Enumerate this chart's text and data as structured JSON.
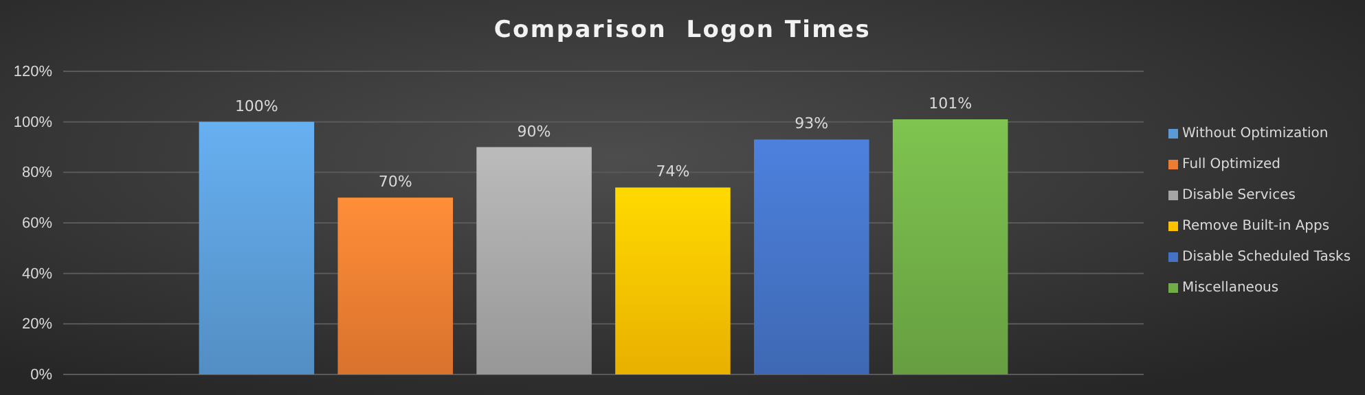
{
  "chart_data": {
    "type": "bar",
    "title": "Comparison  Logon Times",
    "categories": [
      null
    ],
    "series": [
      {
        "name": "Without Optimization",
        "color": "#5b9bd5",
        "values": [
          100
        ],
        "value_labels": [
          "100%"
        ]
      },
      {
        "name": "Full Optimized",
        "color": "#ed7d31",
        "values": [
          70
        ],
        "value_labels": [
          "70%"
        ]
      },
      {
        "name": "Disable Services",
        "color": "#a5a5a5",
        "values": [
          90
        ],
        "value_labels": [
          "90%"
        ]
      },
      {
        "name": "Remove Built-in Apps",
        "color": "#ffc000",
        "values": [
          74
        ],
        "value_labels": [
          "74%"
        ]
      },
      {
        "name": "Disable Scheduled Tasks",
        "color": "#4472c4",
        "values": [
          93
        ],
        "value_labels": [
          "93%"
        ]
      },
      {
        "name": "Miscellaneous",
        "color": "#70ad47",
        "values": [
          101
        ],
        "value_labels": [
          "101%"
        ]
      }
    ],
    "ylim": [
      0,
      120
    ],
    "yticks": [
      {
        "value": 0,
        "label": "0%"
      },
      {
        "value": 20,
        "label": "20%"
      },
      {
        "value": 40,
        "label": "40%"
      },
      {
        "value": 60,
        "label": "60%"
      },
      {
        "value": 80,
        "label": "80%"
      },
      {
        "value": 100,
        "label": "100%"
      },
      {
        "value": 120,
        "label": "120%"
      }
    ],
    "grid": "y",
    "legend": "right"
  }
}
